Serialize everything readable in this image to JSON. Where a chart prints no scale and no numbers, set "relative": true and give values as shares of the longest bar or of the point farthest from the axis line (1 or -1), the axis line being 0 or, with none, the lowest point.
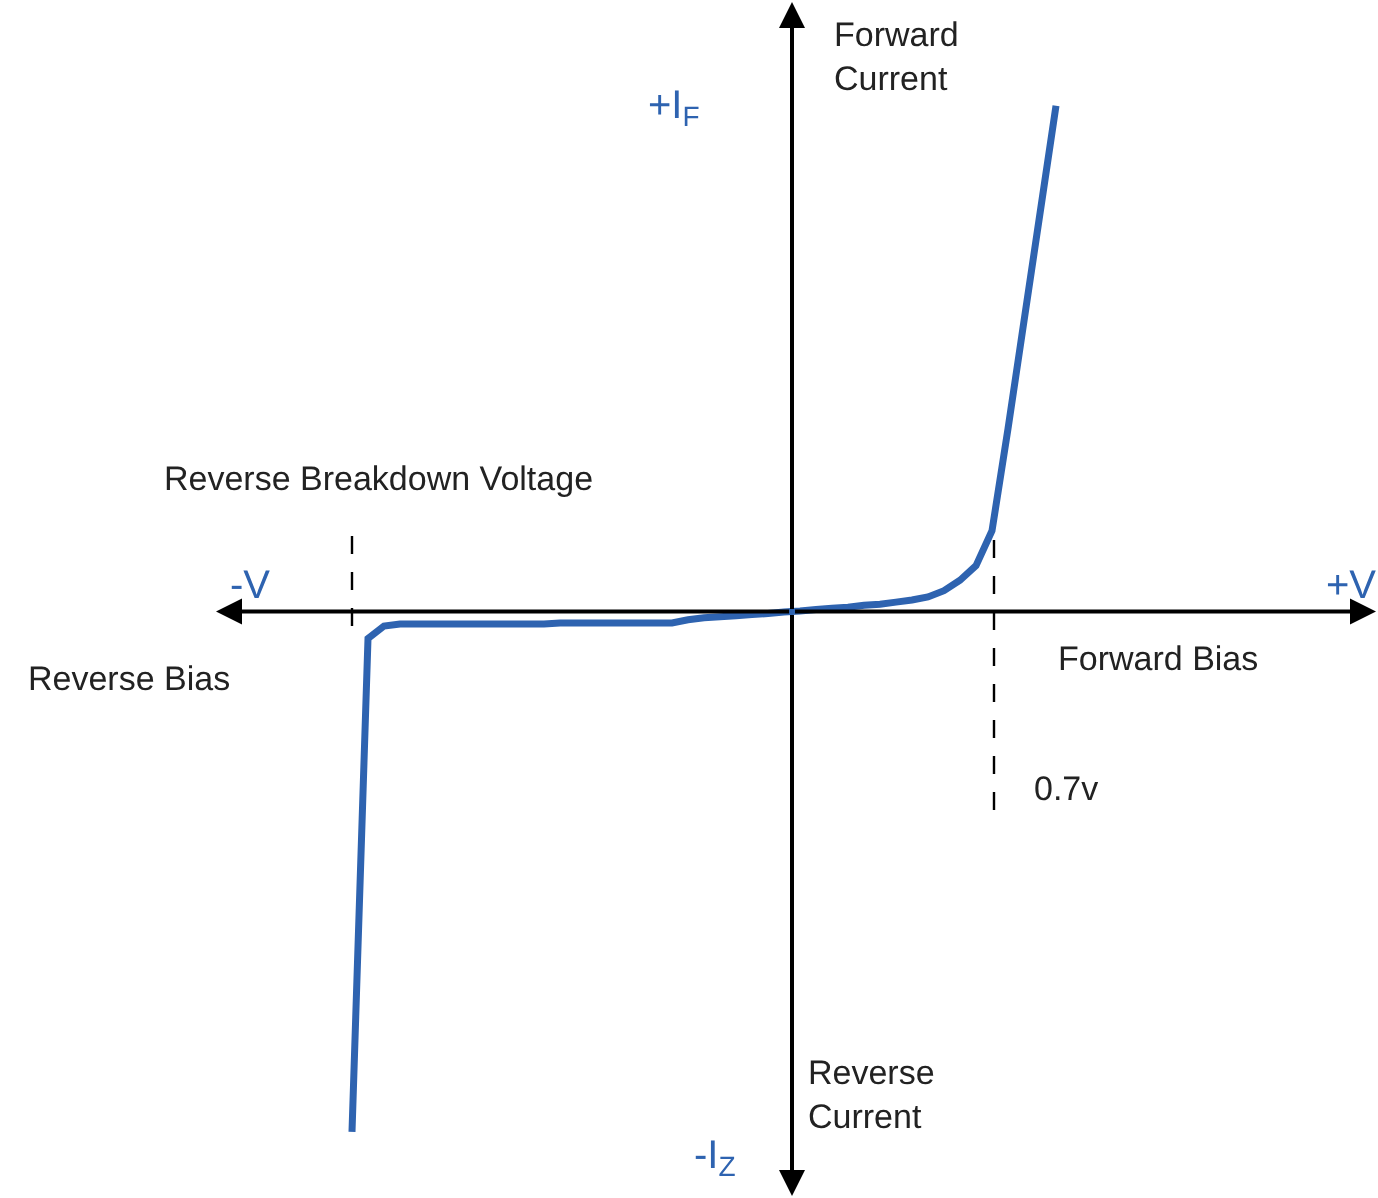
{
  "chart_data": {
    "type": "line",
    "relative": true,
    "grid": false,
    "marker": "none",
    "line_style": "solid",
    "categories": [
      null,
      null,
      null,
      null,
      null,
      null,
      null,
      null,
      null,
      null,
      null,
      null,
      null,
      null,
      null,
      null,
      null,
      null,
      null,
      null,
      null,
      null,
      null,
      null,
      null,
      null,
      null,
      null,
      null,
      null,
      null,
      null,
      null,
      null,
      null,
      null,
      null,
      null,
      null,
      null,
      null,
      null,
      null,
      null,
      null
    ],
    "annotations": [
      "Forward Current",
      "+I$_{F}$",
      "-V",
      "+V",
      "Reverse Bias",
      "Forward Bias",
      "Reverse Current",
      "-I$_{Z}$",
      "Reverse Breakdown Voltage",
      "0.7v"
    ],
    "series": [
      {
        "color": "#2e63b0",
        "values": [
          -1.0,
          -0.052,
          -0.028,
          -0.024,
          -0.024,
          -0.024,
          -0.024,
          -0.024,
          -0.024,
          -0.024,
          -0.024,
          -0.024,
          -0.024,
          -0.022,
          -0.022,
          -0.022,
          -0.022,
          -0.022,
          -0.022,
          -0.022,
          -0.022,
          -0.016,
          -0.012,
          -0.01,
          -0.008,
          -0.006,
          -0.004,
          -0.001,
          0.001,
          0.004,
          0.006,
          0.008,
          0.012,
          0.014,
          0.018,
          0.022,
          0.028,
          0.04,
          0.06,
          0.088,
          0.155,
          0.351,
          0.558,
          0.765,
          0.972
        ]
      }
    ]
  }
}
